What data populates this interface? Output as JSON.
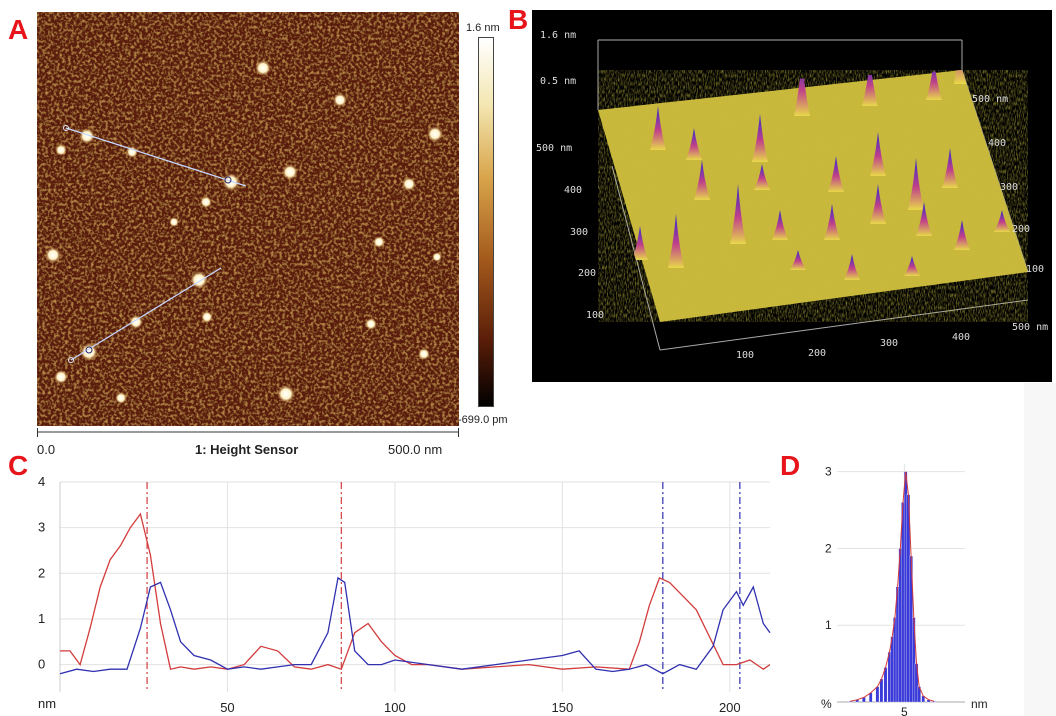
{
  "panels": {
    "a_label": "A",
    "b_label": "B",
    "c_label": "C",
    "d_label": "D"
  },
  "panel_a": {
    "colorbar_max": "1.6 nm",
    "colorbar_min": "-699.0 pm",
    "axis_start": "0.0",
    "axis_end": "500.0 nm",
    "title": "1: Height Sensor",
    "colors": {
      "background": "#5a1d08",
      "particle": "#fff6d8"
    }
  },
  "panel_b": {
    "z_max": "1.6 nm",
    "z_mid": "0.5 nm",
    "left_axis": [
      "500 nm",
      "400",
      "300",
      "200",
      "100"
    ],
    "bottom_axis": [
      "100",
      "200",
      "300",
      "400",
      "500 nm"
    ],
    "right_axis": [
      "500 nm",
      "400",
      "300",
      "200",
      "100"
    ],
    "colors": {
      "surface": "#e8d84a",
      "peak": "#2a2ad0",
      "mid": "#c0408a"
    }
  },
  "chart_data": [
    {
      "type": "line",
      "panel": "C",
      "xlabel": "",
      "ylabel": "nm",
      "xlim": [
        0,
        212
      ],
      "ylim": [
        -0.6,
        4
      ],
      "x_ticks": [
        50,
        100,
        150,
        200
      ],
      "y_ticks": [
        0,
        1,
        2,
        3,
        4
      ],
      "grid": true,
      "series": [
        {
          "color": "#d23c3c",
          "x": [
            0,
            3,
            6,
            9,
            12,
            15,
            18,
            21,
            24,
            27,
            30,
            33,
            36,
            40,
            45,
            50,
            55,
            60,
            65,
            70,
            75,
            80,
            84,
            88,
            92,
            96,
            100,
            105,
            110,
            120,
            130,
            140,
            150,
            160,
            170,
            173,
            176,
            179,
            182,
            186,
            190,
            194,
            198,
            202,
            206,
            210,
            212
          ],
          "y": [
            0.3,
            0.3,
            0.0,
            0.8,
            1.7,
            2.3,
            2.6,
            3.0,
            3.3,
            2.4,
            0.9,
            -0.1,
            -0.05,
            -0.1,
            -0.05,
            -0.1,
            0.0,
            0.4,
            0.3,
            -0.05,
            -0.1,
            0.0,
            -0.1,
            0.7,
            0.9,
            0.5,
            0.2,
            0.0,
            0.0,
            -0.1,
            -0.05,
            0.0,
            -0.1,
            -0.05,
            -0.1,
            0.5,
            1.3,
            1.9,
            1.8,
            1.5,
            1.2,
            0.6,
            0.0,
            0.0,
            0.1,
            -0.1,
            0.0
          ]
        },
        {
          "color": "#3030b0",
          "x": [
            0,
            5,
            10,
            15,
            20,
            24,
            27,
            30,
            33,
            36,
            40,
            45,
            50,
            55,
            60,
            65,
            70,
            75,
            80,
            83,
            85,
            88,
            92,
            96,
            100,
            110,
            120,
            130,
            140,
            150,
            155,
            160,
            165,
            170,
            175,
            180,
            185,
            190,
            195,
            198,
            202,
            204,
            207,
            210,
            212
          ],
          "y": [
            -0.2,
            -0.1,
            -0.15,
            -0.1,
            -0.1,
            0.8,
            1.7,
            1.8,
            1.2,
            0.5,
            0.2,
            0.1,
            -0.1,
            -0.05,
            -0.1,
            -0.05,
            0.0,
            0.0,
            0.7,
            1.9,
            1.8,
            0.3,
            0.0,
            0.0,
            0.1,
            0.0,
            -0.1,
            0.0,
            0.1,
            0.2,
            0.3,
            -0.1,
            -0.15,
            -0.1,
            0.0,
            -0.2,
            0.0,
            -0.1,
            0.4,
            1.2,
            1.6,
            1.3,
            1.7,
            0.9,
            0.7
          ]
        }
      ],
      "markers": [
        {
          "x": 26,
          "color": "#d23c3c"
        },
        {
          "x": 84,
          "color": "#d23c3c"
        },
        {
          "x": 180,
          "color": "#3030b0"
        },
        {
          "x": 203,
          "color": "#3030b0"
        }
      ]
    },
    {
      "type": "bar",
      "panel": "D",
      "ylabel": "%",
      "xlabel": "nm",
      "x_ticks": [
        5
      ],
      "y_ticks": [
        1,
        2,
        3
      ],
      "xlim": [
        0,
        9.5
      ],
      "ylim": [
        0,
        3.1
      ],
      "color": "#3a3ad8",
      "x": [
        1.0,
        1.5,
        2.0,
        2.5,
        3.0,
        3.3,
        3.6,
        3.9,
        4.1,
        4.3,
        4.5,
        4.7,
        4.9,
        5.1,
        5.3,
        5.5,
        5.7,
        5.9,
        6.1,
        6.4,
        6.8,
        7.2
      ],
      "values": [
        0.01,
        0.03,
        0.06,
        0.12,
        0.2,
        0.3,
        0.45,
        0.65,
        0.85,
        1.1,
        1.5,
        2.0,
        2.6,
        3.0,
        2.7,
        1.9,
        1.1,
        0.5,
        0.2,
        0.08,
        0.03,
        0.01
      ]
    }
  ]
}
